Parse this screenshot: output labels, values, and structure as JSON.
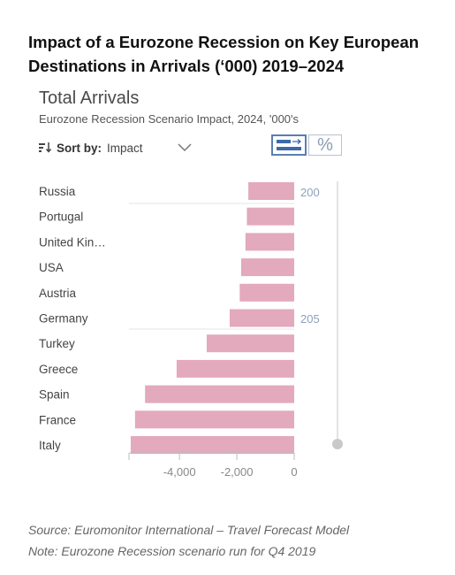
{
  "headline": "Impact of a Eurozone Recession on Key European Destinations in Arrivals (‘000) 2019–2024",
  "widget": {
    "title": "Total Arrivals",
    "subtitle": "Eurozone Recession Scenario Impact, 2024, '000's",
    "sort_label": "Sort by:",
    "sort_value": "Impact",
    "percent_symbol": "%",
    "slider_labels": [
      "200",
      "205"
    ]
  },
  "chart_data": {
    "type": "bar",
    "orientation": "horizontal",
    "title": "Total Arrivals",
    "subtitle": "Eurozone Recession Scenario Impact, 2024, '000's",
    "categories": [
      "Russia",
      "Portugal",
      "United Kin…",
      "USA",
      "Austria",
      "Germany",
      "Turkey",
      "Greece",
      "Spain",
      "France",
      "Italy"
    ],
    "values": [
      -1600,
      -1650,
      -1700,
      -1850,
      -1900,
      -2250,
      -3050,
      -4100,
      -5200,
      -5550,
      -5700
    ],
    "xticks": [
      -4000,
      -2000,
      0
    ],
    "xtick_labels": [
      "-4,000",
      "-2,000",
      "0"
    ],
    "xlim": [
      -5760,
      0
    ],
    "bar_color": "#e3a9bc"
  },
  "sources": {
    "source": "Source: Euromonitor International – Travel Forecast Model",
    "note": "Note: Eurozone Recession scenario run for Q4 2019"
  }
}
